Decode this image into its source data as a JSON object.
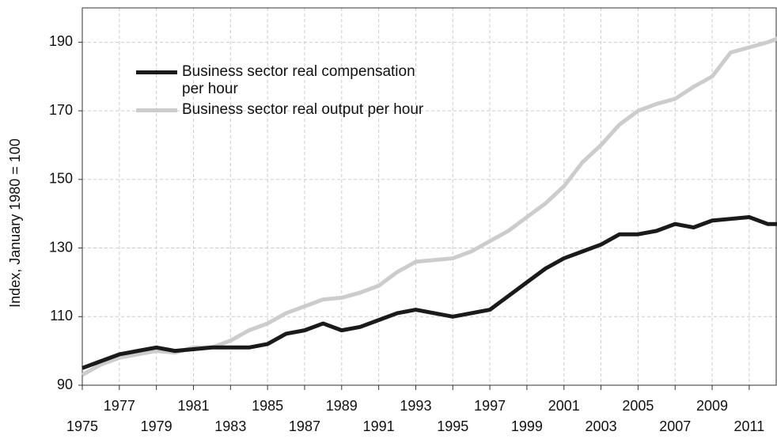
{
  "chart_data": {
    "type": "line",
    "y_label": "Index, January 1980 = 100",
    "x": [
      1975,
      1976,
      1977,
      1978,
      1979,
      1980,
      1981,
      1982,
      1983,
      1984,
      1985,
      1986,
      1987,
      1988,
      1989,
      1990,
      1991,
      1992,
      1993,
      1994,
      1995,
      1996,
      1997,
      1998,
      1999,
      2000,
      2001,
      2002,
      2003,
      2004,
      2005,
      2006,
      2007,
      2008,
      2009,
      2010,
      2011,
      2012,
      2012.5
    ],
    "series": [
      {
        "name": "Business sector real compensation per hour",
        "color": "#1a1a1a",
        "values": [
          95,
          97,
          99,
          100,
          101,
          100,
          100.5,
          101,
          101,
          101,
          102,
          105,
          106,
          108,
          106,
          107,
          109,
          111,
          112,
          111,
          110,
          111,
          112,
          116,
          120,
          124,
          127,
          129,
          131,
          134,
          134,
          135,
          137,
          136,
          138,
          138.5,
          139,
          137,
          137
        ]
      },
      {
        "name": "Business sector real output per hour",
        "color": "#cccccc",
        "values": [
          93,
          96,
          98,
          99,
          100,
          99.5,
          101,
          101,
          103,
          106,
          108,
          111,
          113,
          115,
          115.5,
          117,
          119,
          123,
          126,
          126.5,
          127,
          129,
          132,
          135,
          139,
          143,
          148,
          155,
          160,
          166,
          170,
          172,
          173.5,
          177,
          180,
          187,
          188.5,
          190,
          191
        ]
      }
    ],
    "xlim": [
      1975,
      2012.5
    ],
    "xticks": [
      1975,
      1977,
      1979,
      1981,
      1983,
      1985,
      1987,
      1989,
      1991,
      1993,
      1995,
      1997,
      1999,
      2001,
      2003,
      2005,
      2007,
      2009,
      2011
    ],
    "ylim": [
      90,
      200
    ],
    "yticks": [
      90,
      110,
      130,
      150,
      170,
      190
    ],
    "grid": true
  }
}
